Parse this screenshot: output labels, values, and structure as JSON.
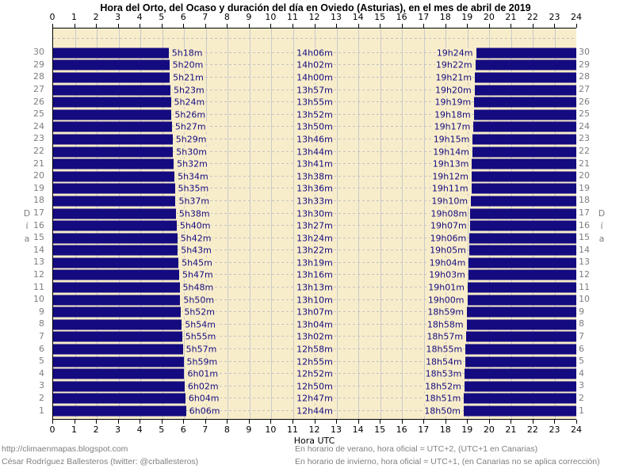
{
  "title": "Hora del Orto, del Ocaso y duración del día en Oviedo (Asturias), en el mes de abril de 2019",
  "axis": {
    "x_label": "Hora UTC",
    "y_label": "Día",
    "hours": [
      0,
      1,
      2,
      3,
      4,
      5,
      6,
      7,
      8,
      9,
      10,
      11,
      12,
      13,
      14,
      15,
      16,
      17,
      18,
      19,
      20,
      21,
      22,
      23,
      24
    ]
  },
  "footer": {
    "left": [
      "http://climaenmapas.blogspot.com",
      "César Rodríguez Ballesteros (twitter: @crballesteros)"
    ],
    "right": [
      "En horario de verano, hora oficial = UTC+2, (UTC+1 en Canarias)",
      "En horario de invierno, hora oficial = UTC+1, (en Canarias no se aplica corrección)"
    ]
  },
  "colors": {
    "bar": "#140b80",
    "bar_label": "#140b80",
    "plot_background": "#f8edcb",
    "grid": "#c9c9c9",
    "muted_text": "#7f7f7f",
    "axis_text": "#000000"
  },
  "chart_data": {
    "type": "bar",
    "orientation": "horizontal",
    "description": "Night spans drawn as navy bars from 0h to sunrise (orto) and from sunset (ocaso) to 24h; daylight gap labeled with duration.",
    "x_range": [
      0,
      24
    ],
    "x_tick_step": 1,
    "xlabel": "Hora UTC",
    "ylabel": "Día",
    "grid": true,
    "days": [
      {
        "day": 1,
        "orto": "6h06m",
        "duracion": "12h44m",
        "ocaso": "18h50m"
      },
      {
        "day": 2,
        "orto": "6h04m",
        "duracion": "12h47m",
        "ocaso": "18h51m"
      },
      {
        "day": 3,
        "orto": "6h02m",
        "duracion": "12h50m",
        "ocaso": "18h52m"
      },
      {
        "day": 4,
        "orto": "6h01m",
        "duracion": "12h52m",
        "ocaso": "18h53m"
      },
      {
        "day": 5,
        "orto": "5h59m",
        "duracion": "12h55m",
        "ocaso": "18h54m"
      },
      {
        "day": 6,
        "orto": "5h57m",
        "duracion": "12h58m",
        "ocaso": "18h55m"
      },
      {
        "day": 7,
        "orto": "5h55m",
        "duracion": "13h02m",
        "ocaso": "18h57m"
      },
      {
        "day": 8,
        "orto": "5h54m",
        "duracion": "13h04m",
        "ocaso": "18h58m"
      },
      {
        "day": 9,
        "orto": "5h52m",
        "duracion": "13h07m",
        "ocaso": "18h59m"
      },
      {
        "day": 10,
        "orto": "5h50m",
        "duracion": "13h10m",
        "ocaso": "19h00m"
      },
      {
        "day": 11,
        "orto": "5h48m",
        "duracion": "13h13m",
        "ocaso": "19h01m"
      },
      {
        "day": 12,
        "orto": "5h47m",
        "duracion": "13h16m",
        "ocaso": "19h03m"
      },
      {
        "day": 13,
        "orto": "5h45m",
        "duracion": "13h19m",
        "ocaso": "19h04m"
      },
      {
        "day": 14,
        "orto": "5h43m",
        "duracion": "13h22m",
        "ocaso": "19h05m"
      },
      {
        "day": 15,
        "orto": "5h42m",
        "duracion": "13h24m",
        "ocaso": "19h06m"
      },
      {
        "day": 16,
        "orto": "5h40m",
        "duracion": "13h27m",
        "ocaso": "19h07m"
      },
      {
        "day": 17,
        "orto": "5h38m",
        "duracion": "13h30m",
        "ocaso": "19h08m"
      },
      {
        "day": 18,
        "orto": "5h37m",
        "duracion": "13h33m",
        "ocaso": "19h10m"
      },
      {
        "day": 19,
        "orto": "5h35m",
        "duracion": "13h36m",
        "ocaso": "19h11m"
      },
      {
        "day": 20,
        "orto": "5h34m",
        "duracion": "13h38m",
        "ocaso": "19h12m"
      },
      {
        "day": 21,
        "orto": "5h32m",
        "duracion": "13h41m",
        "ocaso": "19h13m"
      },
      {
        "day": 22,
        "orto": "5h30m",
        "duracion": "13h44m",
        "ocaso": "19h14m"
      },
      {
        "day": 23,
        "orto": "5h29m",
        "duracion": "13h46m",
        "ocaso": "19h15m"
      },
      {
        "day": 24,
        "orto": "5h27m",
        "duracion": "13h50m",
        "ocaso": "19h17m"
      },
      {
        "day": 25,
        "orto": "5h26m",
        "duracion": "13h52m",
        "ocaso": "19h18m"
      },
      {
        "day": 26,
        "orto": "5h24m",
        "duracion": "13h55m",
        "ocaso": "19h19m"
      },
      {
        "day": 27,
        "orto": "5h23m",
        "duracion": "13h57m",
        "ocaso": "19h20m"
      },
      {
        "day": 28,
        "orto": "5h21m",
        "duracion": "14h00m",
        "ocaso": "19h21m"
      },
      {
        "day": 29,
        "orto": "5h20m",
        "duracion": "14h02m",
        "ocaso": "19h22m"
      },
      {
        "day": 30,
        "orto": "5h18m",
        "duracion": "14h06m",
        "ocaso": "19h24m"
      }
    ]
  }
}
